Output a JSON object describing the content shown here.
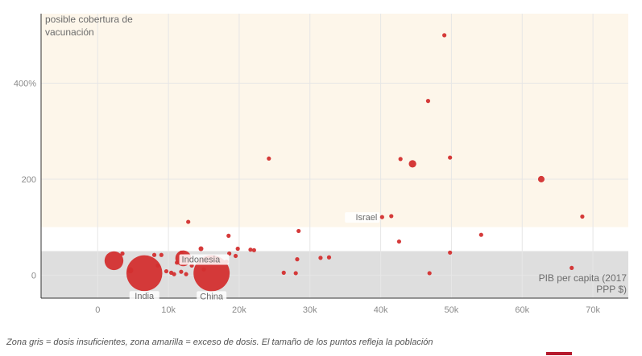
{
  "colors": {
    "point": "#d32f2f",
    "zone_excess": "#fdf6ea",
    "zone_insufficient": "#dedede",
    "grid": "#e6e6e6",
    "brand_bar": "#b51a2d"
  },
  "caption": "Zona gris = dosis insuficientes, zona amarilla = exceso de dosis. El tamaño de los puntos refleja la población",
  "chart_data": {
    "type": "scatter",
    "ylabel_lines": [
      "posible cobertura de",
      "vacunación"
    ],
    "xlabel_lines": [
      "PIB per capita (2017",
      "PPP $)"
    ],
    "xlim": [
      -8000,
      75000
    ],
    "ylim": [
      -48,
      545
    ],
    "x_ticks": [
      {
        "value": 0,
        "label": "0"
      },
      {
        "value": 10000,
        "label": "10k"
      },
      {
        "value": 20000,
        "label": "20k"
      },
      {
        "value": 30000,
        "label": "30k"
      },
      {
        "value": 40000,
        "label": "40k"
      },
      {
        "value": 50000,
        "label": "50k"
      },
      {
        "value": 60000,
        "label": "60k"
      },
      {
        "value": 70000,
        "label": "70k"
      }
    ],
    "y_ticks": [
      {
        "value": 0,
        "label": "0"
      },
      {
        "value": 200,
        "label": "200"
      },
      {
        "value": 400,
        "label": "400%"
      }
    ],
    "zones": [
      {
        "name": "insufficient",
        "from": -48,
        "to": 50
      },
      {
        "name": "excess",
        "from": 100,
        "to": 545
      }
    ],
    "points": [
      {
        "x": 49000,
        "y": 500,
        "pop": 5
      },
      {
        "x": 46700,
        "y": 363,
        "pop": 5
      },
      {
        "x": 49800,
        "y": 245,
        "pop": 4
      },
      {
        "x": 42800,
        "y": 242,
        "pop": 3
      },
      {
        "x": 44500,
        "y": 232,
        "pop": 60
      },
      {
        "x": 24200,
        "y": 243,
        "pop": 4
      },
      {
        "x": 62700,
        "y": 200,
        "pop": 45
      },
      {
        "x": 68500,
        "y": 122,
        "pop": 4
      },
      {
        "x": 41500,
        "y": 123,
        "pop": 9
      },
      {
        "x": 40200,
        "y": 121,
        "pop": 4,
        "label": "Israel"
      },
      {
        "x": 12800,
        "y": 111,
        "pop": 5
      },
      {
        "x": 28400,
        "y": 92,
        "pop": 4
      },
      {
        "x": 54200,
        "y": 84,
        "pop": 4
      },
      {
        "x": 18500,
        "y": 82,
        "pop": 3
      },
      {
        "x": 42600,
        "y": 70,
        "pop": 6
      },
      {
        "x": 14600,
        "y": 55,
        "pop": 25
      },
      {
        "x": 19800,
        "y": 55,
        "pop": 8
      },
      {
        "x": 21600,
        "y": 53,
        "pop": 4
      },
      {
        "x": 22100,
        "y": 52,
        "pop": 4
      },
      {
        "x": 11800,
        "y": 47,
        "pop": 4
      },
      {
        "x": 49800,
        "y": 47,
        "pop": 3
      },
      {
        "x": 18600,
        "y": 45,
        "pop": 5
      },
      {
        "x": 3500,
        "y": 45,
        "pop": 3
      },
      {
        "x": 8000,
        "y": 42,
        "pop": 12
      },
      {
        "x": 9000,
        "y": 42,
        "pop": 8
      },
      {
        "x": 12000,
        "y": 40,
        "pop": 30
      },
      {
        "x": 19500,
        "y": 40,
        "pop": 4
      },
      {
        "x": 32700,
        "y": 37,
        "pop": 3
      },
      {
        "x": 31500,
        "y": 36,
        "pop": 3
      },
      {
        "x": 28200,
        "y": 33,
        "pop": 6
      },
      {
        "x": 2300,
        "y": 30,
        "pop": 380
      },
      {
        "x": 18200,
        "y": 28,
        "pop": 3
      },
      {
        "x": 11200,
        "y": 26,
        "pop": 4
      },
      {
        "x": 16000,
        "y": 25,
        "pop": 8
      },
      {
        "x": 13300,
        "y": 20,
        "pop": 5
      },
      {
        "x": 8500,
        "y": 20,
        "pop": 8
      },
      {
        "x": 67000,
        "y": 15,
        "pop": 3
      },
      {
        "x": 4600,
        "y": 10,
        "pop": 40
      },
      {
        "x": 15000,
        "y": 12,
        "pop": 4
      },
      {
        "x": 9700,
        "y": 8,
        "pop": 3
      },
      {
        "x": 11800,
        "y": 7,
        "pop": 4
      },
      {
        "x": 10400,
        "y": 5,
        "pop": 4
      },
      {
        "x": 26300,
        "y": 5,
        "pop": 4
      },
      {
        "x": 28000,
        "y": 4,
        "pop": 3
      },
      {
        "x": 46900,
        "y": 4,
        "pop": 5
      },
      {
        "x": 10800,
        "y": 2,
        "pop": 5
      },
      {
        "x": 12500,
        "y": 2,
        "pop": 4
      },
      {
        "x": 6600,
        "y": 4,
        "pop": 1380,
        "label": "India"
      },
      {
        "x": 16100,
        "y": 4,
        "pop": 1400,
        "label": "China"
      },
      {
        "x": 12100,
        "y": 35,
        "pop": 270,
        "label": "Indonesia"
      }
    ]
  }
}
